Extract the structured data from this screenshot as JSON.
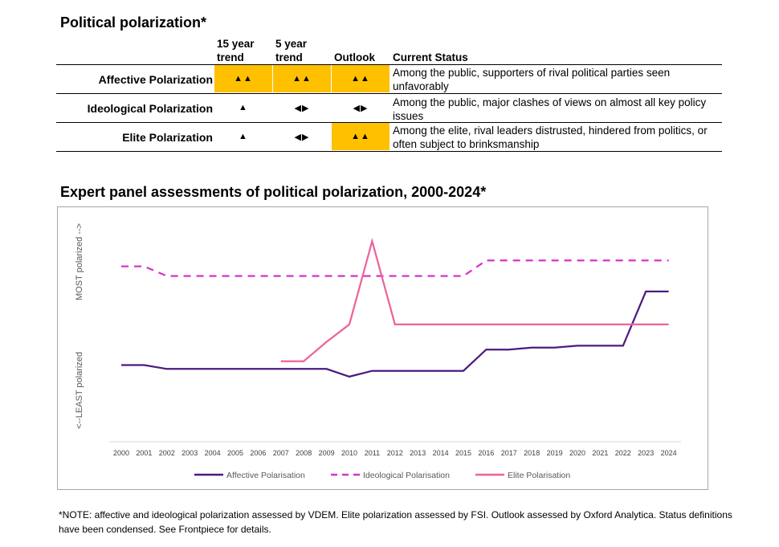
{
  "table": {
    "title": "Political polarization*",
    "headers": {
      "trend15_line1": "15 year",
      "trend15_line2": "trend",
      "trend5_line1": "5 year",
      "trend5_line2": "trend",
      "outlook": "Outlook",
      "status": "Current Status"
    },
    "highlight_color": "#FFC000",
    "rows": [
      {
        "label": "Affective Polarization",
        "trend15": "▲▲",
        "trend15_hl": true,
        "trend5": "▲▲",
        "trend5_hl": true,
        "outlook": "▲▲",
        "outlook_hl": true,
        "status": "Among the public, supporters of rival political parties seen unfavorably"
      },
      {
        "label": "Ideological Polarization",
        "trend15": "▲",
        "trend15_hl": false,
        "trend5": "◀▶",
        "trend5_hl": false,
        "outlook": "◀▶",
        "outlook_hl": false,
        "status": "Among the public, major clashes of views on almost all key policy issues"
      },
      {
        "label": "Elite Polarization",
        "trend15": "▲",
        "trend15_hl": false,
        "trend5": "◀▶",
        "trend5_hl": false,
        "outlook": "▲▲",
        "outlook_hl": true,
        "status": "Among the elite, rival leaders distrusted, hindered from politics, or often subject to brinksmanship"
      }
    ]
  },
  "chart_data": {
    "type": "line",
    "title": "Expert panel assessments of political polarization, 2000-2024*",
    "ylabel_top": "MOST polarized -->",
    "ylabel_bottom": "<--LEAST polarized",
    "x": [
      2000,
      2001,
      2002,
      2003,
      2004,
      2005,
      2006,
      2007,
      2008,
      2009,
      2010,
      2011,
      2012,
      2013,
      2014,
      2015,
      2016,
      2017,
      2018,
      2019,
      2020,
      2021,
      2022,
      2023,
      2024
    ],
    "ylim": [
      0,
      1
    ],
    "grid": false,
    "legend_position": "bottom",
    "series": [
      {
        "name": "Affective Polarisation",
        "color": "#4B1C7E",
        "dash": "solid",
        "values": [
          0.33,
          0.33,
          0.31,
          0.31,
          0.31,
          0.31,
          0.31,
          0.31,
          0.31,
          0.31,
          0.27,
          0.3,
          0.3,
          0.3,
          0.3,
          0.3,
          0.41,
          0.41,
          0.42,
          0.42,
          0.43,
          0.43,
          0.43,
          0.71,
          0.71
        ]
      },
      {
        "name": "Ideological Polarisation",
        "color": "#D633C9",
        "dash": "dashed",
        "values": [
          0.84,
          0.84,
          0.79,
          0.79,
          0.79,
          0.79,
          0.79,
          0.79,
          0.79,
          0.79,
          0.79,
          0.79,
          0.79,
          0.79,
          0.79,
          0.79,
          0.87,
          0.87,
          0.87,
          0.87,
          0.87,
          0.87,
          0.87,
          0.87,
          0.87
        ]
      },
      {
        "name": "Elite Polarization",
        "legend_label": "Elite Polarisation",
        "color": "#F0619A",
        "dash": "solid",
        "values": [
          null,
          null,
          null,
          null,
          null,
          null,
          null,
          0.35,
          0.35,
          0.45,
          0.54,
          0.97,
          0.54,
          0.54,
          0.54,
          0.54,
          0.54,
          0.54,
          0.54,
          0.54,
          0.54,
          0.54,
          0.54,
          0.54,
          0.54
        ]
      }
    ]
  },
  "note": "*NOTE: affective and ideological polarization assessed by VDEM. Elite polarization assessed by FSI. Outlook assessed by Oxford Analytica. Status definitions have been condensed. See Frontpiece for details."
}
